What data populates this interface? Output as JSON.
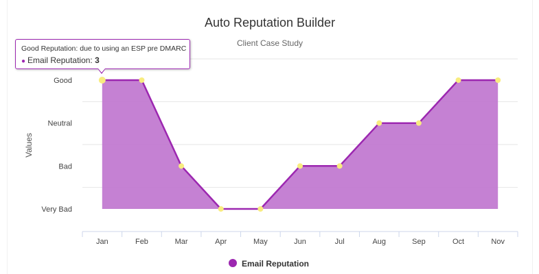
{
  "chart_data": {
    "type": "area",
    "title": "Auto Reputation Builder",
    "subtitle": "Client Case Study",
    "xlabel": "",
    "ylabel": "Values",
    "categories": [
      "Jan",
      "Feb",
      "Mar",
      "Apr",
      "May",
      "Jun",
      "Jul",
      "Aug",
      "Sep",
      "Oct",
      "Nov"
    ],
    "y_categories": [
      "Very Bad",
      "Bad",
      "Neutral",
      "Good"
    ],
    "ylim": [
      0,
      3
    ],
    "series": [
      {
        "name": "Email Reputation",
        "values": [
          3,
          3,
          1,
          0,
          0,
          1,
          1,
          2,
          2,
          3,
          3
        ],
        "color": "#9c27b0",
        "fill": "#c27ad1",
        "marker_color": "#f8ec7f"
      }
    ],
    "legend": "bottom-center",
    "grid": true
  },
  "tooltip": {
    "header": "Good Reputation: due to using an ESP pre DMARC",
    "series_label": "Email Reputation:",
    "value": "3"
  }
}
